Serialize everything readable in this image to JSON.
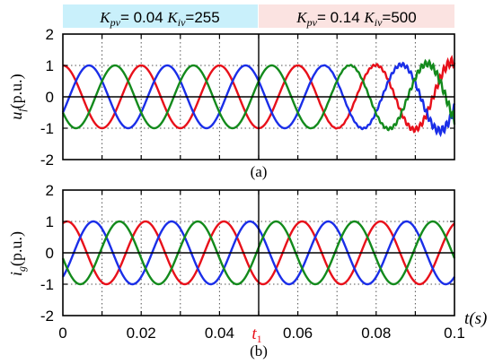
{
  "chart_data": [
    {
      "type": "line",
      "panel_caption": "(a)",
      "ylabel": {
        "symbol": "u",
        "subscript": "f",
        "unit": "(p.u.)"
      },
      "ylim": [
        -2,
        2
      ],
      "xlim": [
        0,
        0.1
      ],
      "yticks": [
        "2",
        "1",
        "0",
        "-1",
        "-2"
      ],
      "grid": "dotted at y = ±1 and every 0.01 s",
      "series_colors": [
        "#e8101a",
        "#1a2ee8",
        "#138a1c"
      ],
      "series": [
        {
          "color": "#e8101a",
          "segments": [
            {
              "t_start": 0,
              "t_end": 0.05,
              "amplitude": 1.0,
              "phase_deg": 90,
              "freq_hz": 50
            },
            {
              "t_start": 0.05,
              "t_end": 0.1,
              "amplitude": 1.0,
              "phase_deg": 90,
              "freq_hz": 50,
              "oscillation_amplitude_at_end": 0.15
            }
          ]
        },
        {
          "color": "#1a2ee8",
          "segments": [
            {
              "t_start": 0,
              "t_end": 0.05,
              "amplitude": 1.0,
              "phase_deg": -30,
              "freq_hz": 50
            },
            {
              "t_start": 0.05,
              "t_end": 0.1,
              "amplitude": 1.0,
              "phase_deg": -30,
              "freq_hz": 50,
              "oscillation_amplitude_at_end": 0.15
            }
          ]
        },
        {
          "color": "#138a1c",
          "segments": [
            {
              "t_start": 0,
              "t_end": 0.05,
              "amplitude": 1.0,
              "phase_deg": 210,
              "freq_hz": 50
            },
            {
              "t_start": 0.05,
              "t_end": 0.1,
              "amplitude": 1.0,
              "phase_deg": 210,
              "freq_hz": 50,
              "oscillation_amplitude_at_end": 0.15
            }
          ]
        }
      ],
      "annotations": [
        {
          "text": "Kpv= 0.04 Kiv=255",
          "region": [
            0,
            0.05
          ],
          "band_color": "#c9f0fb"
        },
        {
          "text": "Kpv= 0.14 Kiv=500",
          "region": [
            0.05,
            0.1
          ],
          "band_color": "#fbe3e1"
        }
      ]
    },
    {
      "type": "line",
      "panel_caption": "(b)",
      "ylabel": {
        "symbol": "i",
        "subscript": "g",
        "unit": "(p.u.)"
      },
      "xlabel": "t(s)",
      "ylim": [
        -2,
        2
      ],
      "xlim": [
        0,
        0.1
      ],
      "yticks": [
        "2",
        "1",
        "0",
        "-1",
        "-2"
      ],
      "xticks": [
        "0",
        "0.02",
        "0.04",
        "t1",
        "0.06",
        "0.08",
        "0.1"
      ],
      "grid": "dotted at y = ±1 and every 0.01 s",
      "series": [
        {
          "color": "#e8101a",
          "segments": [
            {
              "t_start": 0,
              "t_end": 0.1,
              "amplitude": 1.0,
              "phase_deg": 70,
              "freq_hz": 50
            }
          ]
        },
        {
          "color": "#1a2ee8",
          "segments": [
            {
              "t_start": 0,
              "t_end": 0.1,
              "amplitude": 1.0,
              "phase_deg": -50,
              "freq_hz": 50
            }
          ]
        },
        {
          "color": "#138a1c",
          "segments": [
            {
              "t_start": 0,
              "t_end": 0.1,
              "amplitude": 1.0,
              "phase_deg": 190,
              "freq_hz": 50
            }
          ]
        }
      ]
    }
  ],
  "labels": {
    "band_a": {
      "k1": "K",
      "k1_sub": "pv",
      "v1": "= 0.04 ",
      "k2": "K",
      "k2_sub": "iv",
      "v2": "=255"
    },
    "band_b": {
      "k1": "K",
      "k1_sub": "pv",
      "v1": "= 0.14 ",
      "k2": "K",
      "k2_sub": "iv",
      "v2": "=500"
    },
    "caption_a": "(a)",
    "caption_b": "(b)",
    "xlabel_t": "t",
    "xlabel_unit": "(s)",
    "t1_label": "t",
    "t1_sub": "1",
    "ylabel_a": {
      "sym": "u",
      "sub": "f",
      "unit": "(p.u.)"
    },
    "ylabel_b": {
      "sym": "i",
      "sub": "g",
      "unit": "(p.u.)"
    },
    "xticks": [
      "0",
      "0.02",
      "0.04",
      "0.06",
      "0.08",
      "0.1"
    ]
  }
}
